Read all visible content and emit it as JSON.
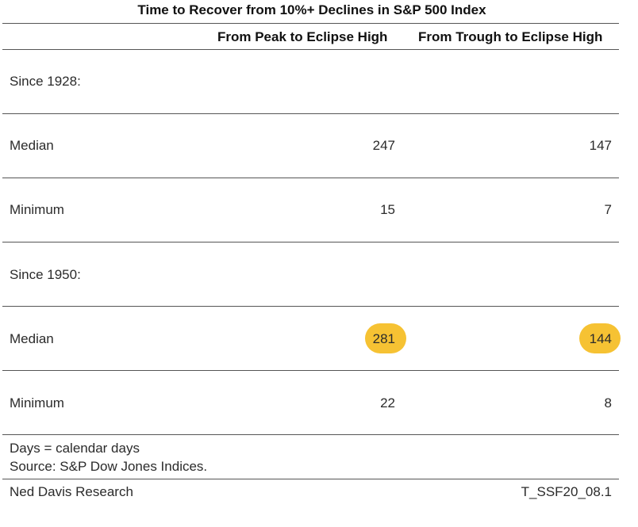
{
  "chart_data": {
    "type": "table",
    "title": "Time to Recover from 10%+ Declines in S&P 500 Index",
    "columns": [
      "",
      "From Peak to Eclipse High",
      "From Trough to Eclipse High"
    ],
    "sections": [
      {
        "label": "Since 1928:",
        "rows": [
          {
            "label": "Median",
            "peak": "247",
            "trough": "147"
          },
          {
            "label": "Minimum",
            "peak": "15",
            "trough": "7"
          }
        ]
      },
      {
        "label": "Since 1950:",
        "rows": [
          {
            "label": "Median",
            "peak": "281",
            "trough": "144",
            "highlighted": true
          },
          {
            "label": "Minimum",
            "peak": "22",
            "trough": "8"
          }
        ]
      }
    ],
    "highlight_color": "#f6c233"
  },
  "notes": [
    "Days = calendar days",
    "Source: S&P Dow Jones Indices."
  ],
  "footer": {
    "left": "Ned Davis Research",
    "right": "T_SSF20_08.1"
  }
}
